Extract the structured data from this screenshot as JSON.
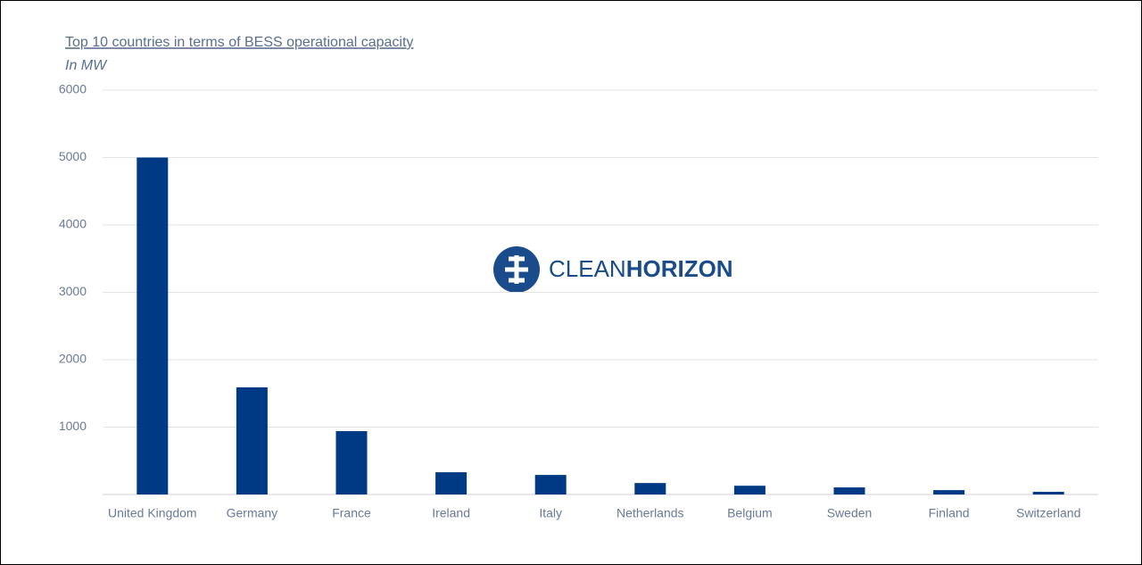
{
  "chart_data": {
    "type": "bar",
    "title": "Top 10 countries in terms of BESS operational capacity",
    "subtitle": "In MW",
    "watermark": [
      "CLEAN",
      "HORIZON"
    ],
    "categories": [
      "United Kingdom",
      "Germany",
      "France",
      "Ireland",
      "Italy",
      "Netherlands",
      "Belgium",
      "Sweden",
      "Finland",
      "Switzerland"
    ],
    "values": [
      5000,
      1590,
      940,
      330,
      290,
      170,
      130,
      105,
      65,
      40
    ],
    "color": "#003a84",
    "ylim": [
      0,
      6000
    ],
    "yticks": [
      1000,
      2000,
      3000,
      4000,
      5000,
      6000
    ],
    "grid": true
  }
}
